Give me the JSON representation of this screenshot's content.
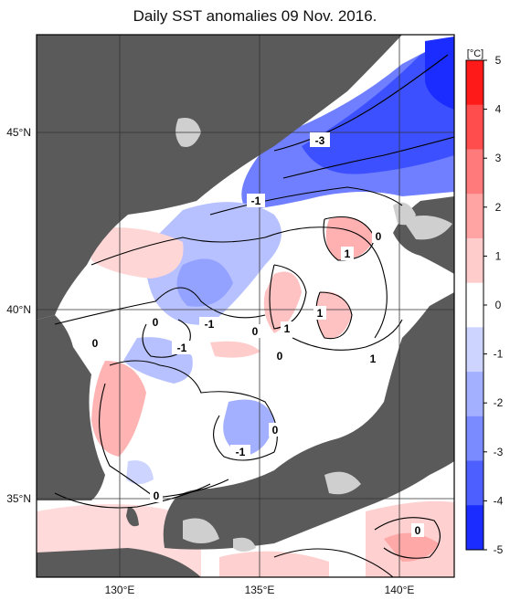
{
  "title": "Daily SST anomalies 09 Nov. 2016.",
  "map": {
    "lon_labels": [
      "130°E",
      "135°E",
      "140°E"
    ],
    "lat_labels": [
      "45°N",
      "40°N",
      "35°N"
    ],
    "contour_labels": [
      "-3",
      "-1",
      "0",
      "1",
      "1",
      "0",
      "0",
      "-1",
      "0",
      "1",
      "-1",
      "0",
      "1",
      "0",
      "0",
      "-1",
      "0"
    ]
  },
  "colorbar": {
    "unit": "[°C]",
    "ticks": [
      "5",
      "4",
      "3",
      "2",
      "1",
      "0",
      "-1",
      "-2",
      "-3",
      "-4",
      "-5"
    ],
    "colors": [
      "#ff1a1a",
      "#ff4d4d",
      "#ff7a7a",
      "#ffa3a3",
      "#ffcccc",
      "#ffffff",
      "#ccd4ff",
      "#a3b0ff",
      "#7a8aff",
      "#4d60ff",
      "#1a2cff"
    ]
  }
}
